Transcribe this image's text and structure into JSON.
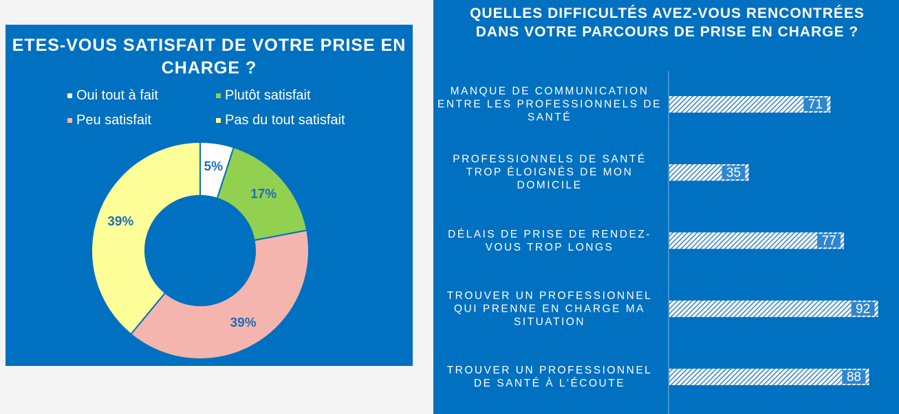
{
  "chart_data": [
    {
      "type": "pie",
      "title": "ETES-VOUS SATISFAIT DE VOTRE PRISE EN CHARGE ?",
      "categories": [
        "Oui tout à fait",
        "Plutôt satisfait",
        "Peu satisfait",
        "Pas du tout satisfait"
      ],
      "values": [
        5,
        17,
        39,
        39
      ],
      "value_labels": [
        "5%",
        "17%",
        "39%",
        "39%"
      ],
      "colors": [
        "#ffffff",
        "#92d050",
        "#f4b5ae",
        "#ffff99"
      ]
    },
    {
      "type": "hbar",
      "title": "QUELLES DIFFICULTÉS AVEZ-VOUS RENCONTRÉES DANS VOTRE PARCOURS DE PRISE EN CHARGE ?",
      "categories": [
        "MANQUE DE COMMUNICATION ENTRE LES PROFESSIONNELS DE SANTÉ",
        "PROFESSIONNELS DE SANTÉ TROP ÉLOIGNÉS DE MON DOMICILE",
        "DÉLAIS DE PRISE DE RENDEZ-VOUS TROP LONGS",
        "TROUVER UN PROFESSIONNEL QUI PRENNE EN CHARGE MA SITUATION",
        "TROUVER UN PROFESSIONNEL DE SANTÉ À L'ÉCOUTE"
      ],
      "values": [
        71,
        35,
        77,
        92,
        88
      ]
    }
  ]
}
